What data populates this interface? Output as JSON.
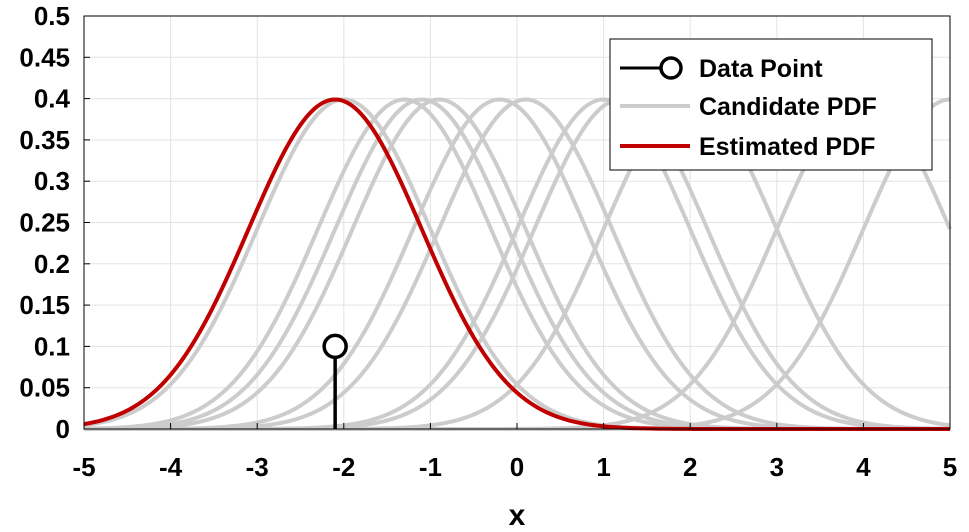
{
  "chart_data": {
    "type": "line",
    "xlabel": "x",
    "ylabel": "",
    "xlim": [
      -5,
      5
    ],
    "ylim": [
      0,
      0.5
    ],
    "grid": true,
    "x_ticks": [
      "-5",
      "-4",
      "-3",
      "-2",
      "-1",
      "0",
      "1",
      "2",
      "3",
      "4",
      "5"
    ],
    "y_ticks": [
      "0",
      "0.05",
      "0.1",
      "0.15",
      "0.2",
      "0.25",
      "0.3",
      "0.35",
      "0.4",
      "0.45",
      "0.5"
    ],
    "legend": {
      "placement": "top-right",
      "entries": [
        {
          "label": "Data Point",
          "color": "#000000",
          "style": "stem-circle"
        },
        {
          "label": "Candidate PDF",
          "color": "#cccccc",
          "style": "line"
        },
        {
          "label": "Estimated PDF",
          "color": "#c00000",
          "style": "line"
        }
      ]
    },
    "data_point": {
      "x": -2.1,
      "y": 0.1,
      "color": "#000000"
    },
    "pdf_sigma": 1,
    "candidate_means": [
      -2.0,
      -1.3,
      -1.1,
      -0.9,
      -0.2,
      0.1,
      1.0,
      1.2,
      2.0,
      4.0,
      5.0
    ],
    "estimated_mean": -2.1,
    "colors": {
      "candidate": "#cccccc",
      "estimated": "#c00000",
      "data_point": "#000000",
      "background": "#ffffff",
      "grid": "#e3e3e3"
    }
  }
}
